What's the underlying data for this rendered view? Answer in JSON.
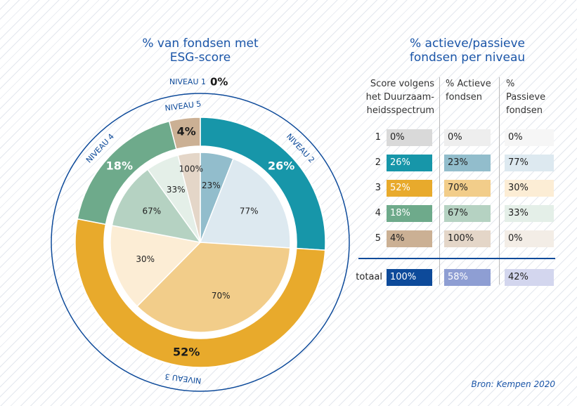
{
  "chart_data": {
    "type": "donut",
    "title": "% van fondsen met ESG-score",
    "segments": [
      {
        "name": "NIVEAU 1",
        "value": 0,
        "value_label": "0%",
        "color": "#d9d9d9",
        "label_color": "#1a1a1a"
      },
      {
        "name": "NIVEAU 2",
        "value": 26,
        "value_label": "26%",
        "color": "#1796a9",
        "label_color": "#ffffff",
        "inner": [
          {
            "value": 23,
            "value_label": "23%",
            "color": "#92bdcc"
          },
          {
            "value": 77,
            "value_label": "77%",
            "color": "#dde9f0"
          }
        ]
      },
      {
        "name": "NIVEAU 3",
        "value": 52,
        "value_label": "52%",
        "color": "#e8aa2c",
        "label_color": "#1a1a1a",
        "inner": [
          {
            "value": 70,
            "value_label": "70%",
            "color": "#f2cd8a"
          },
          {
            "value": 30,
            "value_label": "30%",
            "color": "#fcedd5"
          }
        ]
      },
      {
        "name": "NIVEAU 4",
        "value": 18,
        "value_label": "18%",
        "color": "#6eaa8b",
        "label_color": "#ffffff",
        "inner": [
          {
            "value": 67,
            "value_label": "67%",
            "color": "#b5d2c2"
          },
          {
            "value": 33,
            "value_label": "33%",
            "color": "#e4efe8"
          }
        ]
      },
      {
        "name": "NIVEAU 5",
        "value": 4,
        "value_label": "4%",
        "color": "#cbb094",
        "label_color": "#1a1a1a",
        "inner": [
          {
            "value": 100,
            "value_label": "100%",
            "color": "#e4d6c8"
          }
        ]
      }
    ]
  },
  "table": {
    "title": "% actieve/passieve fondsen per niveau",
    "header": [
      "Score volgens het Duurzaam-heidsspectrum",
      "% Actieve fondsen",
      "% Passieve fondsen"
    ],
    "rows": [
      [
        "1",
        "0%",
        "0%",
        "0%"
      ],
      [
        "2",
        "26%",
        "23%",
        "77%"
      ],
      [
        "3",
        "52%",
        "70%",
        "30%"
      ],
      [
        "4",
        "18%",
        "67%",
        "33%"
      ],
      [
        "5",
        "4%",
        "100%",
        "0%"
      ]
    ],
    "row_colors": [
      [
        "#d9d9d9",
        "#eeeeee",
        "#f6f6f6"
      ],
      [
        "#1796a9",
        "#92bdcc",
        "#dde9f0"
      ],
      [
        "#e8aa2c",
        "#f2cd8a",
        "#fcedd5"
      ],
      [
        "#6eaa8b",
        "#b5d2c2",
        "#e4efe8"
      ],
      [
        "#cbb094",
        "#e4d6c8",
        "#f3ede6"
      ]
    ],
    "total": [
      "totaal",
      "100%",
      "58%",
      "42%"
    ],
    "total_colors": [
      "#0d4a9a",
      "#8e9ed3",
      "#d3d6ee"
    ]
  },
  "source": "Bron: Kempen 2020"
}
